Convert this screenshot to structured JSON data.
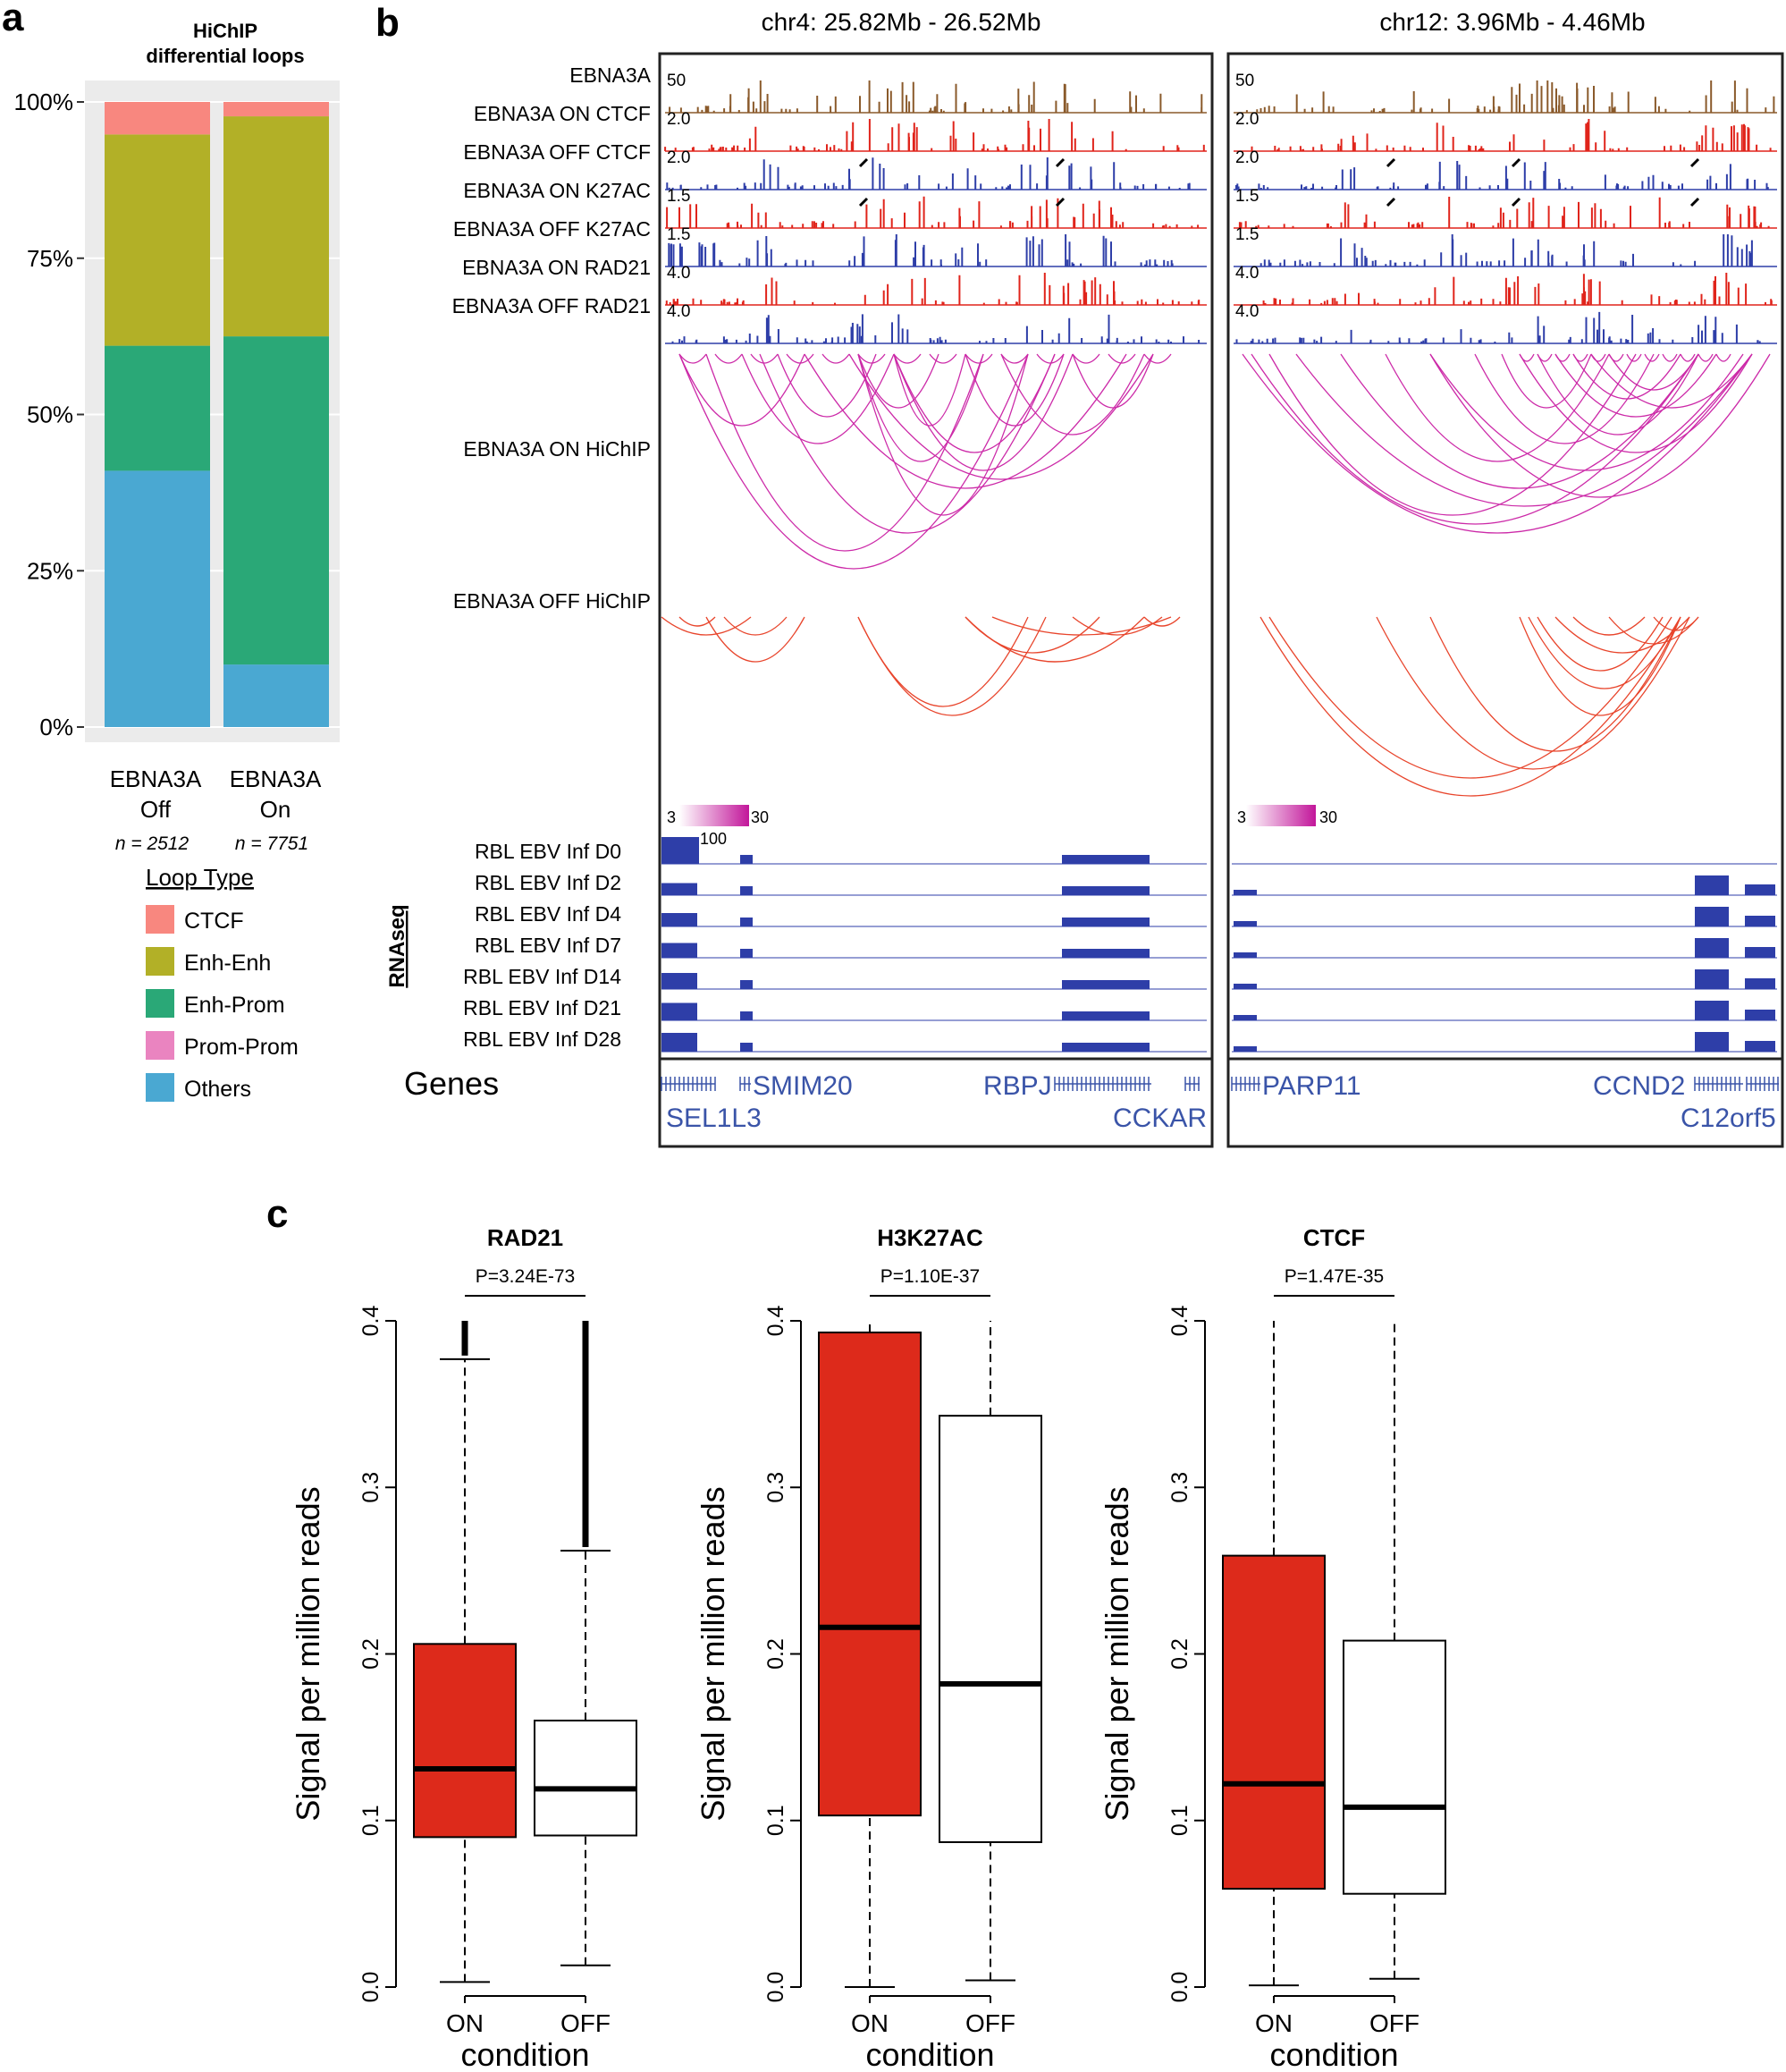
{
  "panels": {
    "a": "a",
    "b": "b",
    "c": "c"
  },
  "chart_data": [
    {
      "id": "a",
      "type": "bar",
      "stacked": true,
      "title": "HiChIP differential loops",
      "title_lines": [
        "HiChIP",
        "differential loops"
      ],
      "categories": [
        "EBNA3A Off",
        "EBNA3A On"
      ],
      "category_lines": [
        [
          "EBNA3A",
          "Off"
        ],
        [
          "EBNA3A",
          "On"
        ]
      ],
      "n_labels": [
        "n = 2512",
        "n = 7751"
      ],
      "y_ticks": [
        "0%",
        "25%",
        "50%",
        "75%",
        "100%"
      ],
      "ylim": [
        0,
        100
      ],
      "legend_title": "Loop Type",
      "legend": [
        {
          "name": "CTCF",
          "color": "#f8877f"
        },
        {
          "name": "Enh-Enh",
          "color": "#b2b027"
        },
        {
          "name": "Enh-Prom",
          "color": "#2aa877"
        },
        {
          "name": "Prom-Prom",
          "color": "#ea84c0"
        },
        {
          "name": "Others",
          "color": "#4aa8d2"
        }
      ],
      "series": [
        {
          "name": "Others",
          "values": [
            41,
            10
          ]
        },
        {
          "name": "Prom-Prom",
          "values": [
            0,
            0
          ]
        },
        {
          "name": "Enh-Prom",
          "values": [
            20,
            52.5
          ]
        },
        {
          "name": "Enh-Enh",
          "values": [
            33.8,
            35.2
          ]
        },
        {
          "name": "CTCF",
          "values": [
            5.2,
            2.3
          ]
        }
      ]
    },
    {
      "id": "b",
      "type": "genome-tracks",
      "regions": [
        "chr4: 25.82Mb - 26.52Mb",
        "chr12: 3.96Mb - 4.46Mb"
      ],
      "track_labels": [
        "EBNA3A",
        "EBNA3A ON CTCF",
        "EBNA3A OFF CTCF",
        "EBNA3A ON K27AC",
        "EBNA3A OFF K27AC",
        "EBNA3A ON RAD21",
        "EBNA3A OFF RAD21"
      ],
      "track_scales": [
        "50",
        "2.0",
        "2.0",
        "1.5",
        "1.5",
        "4.0",
        "4.0"
      ],
      "track_colors": [
        "#8a5a2b",
        "#e0241b",
        "#2e3ea8",
        "#e0241b",
        "#2e3ea8",
        "#e0241b",
        "#2e3ea8"
      ],
      "hichip_labels": [
        "EBNA3A ON HiChIP",
        "EBNA3A OFF HiChIP"
      ],
      "hichip_colors": [
        "#cc2aa8",
        "#e8452c"
      ],
      "colorscale": {
        "min": "3",
        "max": "30"
      },
      "rnaseq_label": "RNAseq",
      "rnaseq_scale": "100",
      "rnaseq_tracks": [
        "RBL EBV Inf D0",
        "RBL EBV Inf D2",
        "RBL EBV Inf D4",
        "RBL EBV Inf D7",
        "RBL EBV Inf D14",
        "RBL EBV Inf D21",
        "RBL EBV Inf D28"
      ],
      "genes_label": "Genes",
      "genes": [
        [
          "SEL1L3",
          "SMIM20",
          "RBPJ",
          "CCKAR"
        ],
        [
          "PARP11",
          "CCND2",
          "C12orf5"
        ]
      ]
    },
    {
      "id": "c",
      "type": "boxplot",
      "ylabel": "Signal per million reads",
      "xlabel": "condition",
      "categories": [
        "ON",
        "OFF"
      ],
      "ylim": [
        0,
        0.4
      ],
      "y_ticks": [
        "0.0",
        "0.1",
        "0.2",
        "0.3",
        "0.4"
      ],
      "colors": {
        "ON": "#dd2a1b",
        "OFF": "#ffffff"
      },
      "plots": [
        {
          "title": "RAD21",
          "pvalue": "P=3.24E-73",
          "boxes": [
            {
              "name": "ON",
              "q1": 0.09,
              "median": 0.131,
              "q3": 0.206,
              "whisker_low": 0.003,
              "whisker_high": 0.377,
              "max": 0.4
            },
            {
              "name": "OFF",
              "q1": 0.091,
              "median": 0.119,
              "q3": 0.16,
              "whisker_low": 0.013,
              "whisker_high": 0.262,
              "max": 0.4
            }
          ]
        },
        {
          "title": "H3K27AC",
          "pvalue": "P=1.10E-37",
          "boxes": [
            {
              "name": "ON",
              "q1": 0.103,
              "median": 0.216,
              "q3": 0.393,
              "whisker_low": 0.0,
              "whisker_high": 0.4,
              "max": null
            },
            {
              "name": "OFF",
              "q1": 0.087,
              "median": 0.182,
              "q3": 0.343,
              "whisker_low": 0.004,
              "whisker_high": 0.4,
              "max": null
            }
          ]
        },
        {
          "title": "CTCF",
          "pvalue": "P=1.47E-35",
          "boxes": [
            {
              "name": "ON",
              "q1": 0.059,
              "median": 0.122,
              "q3": 0.259,
              "whisker_low": 0.001,
              "whisker_high": 0.4,
              "max": null
            },
            {
              "name": "OFF",
              "q1": 0.056,
              "median": 0.108,
              "q3": 0.208,
              "whisker_low": 0.005,
              "whisker_high": 0.4,
              "max": null
            }
          ]
        }
      ]
    }
  ]
}
